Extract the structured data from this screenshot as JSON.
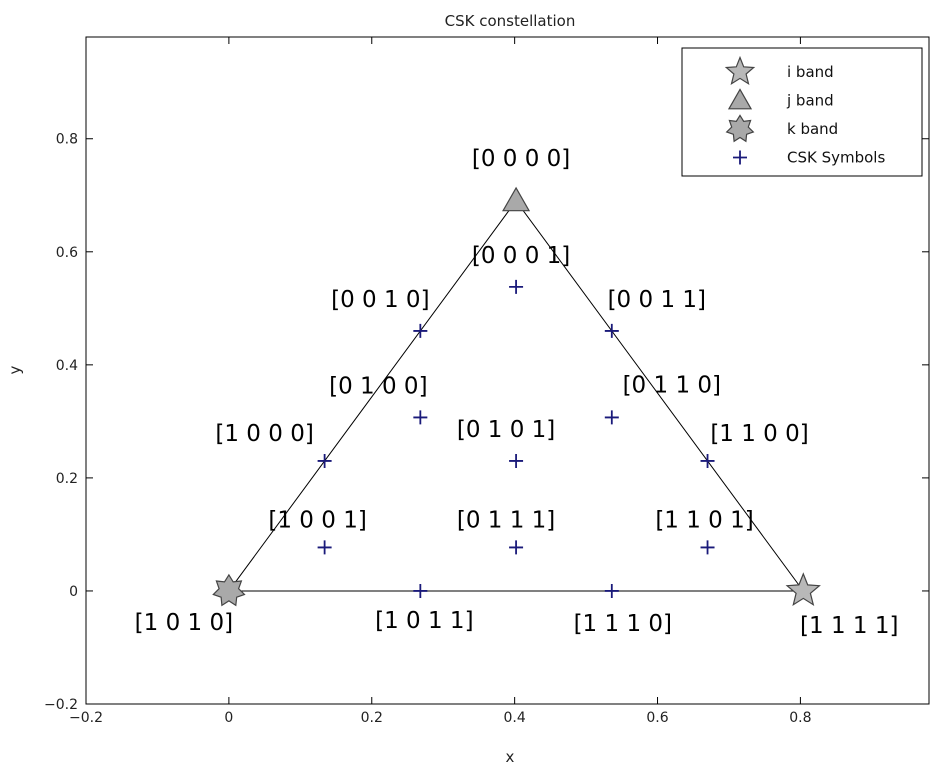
{
  "chart_data": {
    "type": "scatter",
    "title": "CSK constellation",
    "xlabel": "x",
    "ylabel": "y",
    "xlim": [
      -0.2,
      0.98
    ],
    "ylim": [
      -0.2,
      0.98
    ],
    "xticks": [
      -0.2,
      0,
      0.2,
      0.4,
      0.6,
      0.8
    ],
    "yticks": [
      -0.2,
      0,
      0.2,
      0.4,
      0.6,
      0.8
    ],
    "xtick_labels": [
      "−0.2",
      "0",
      "0.2",
      "0.4",
      "0.6",
      "0.8"
    ],
    "ytick_labels": [
      "−0.2",
      "0",
      "0.2",
      "0.4",
      "0.6",
      "0.8"
    ],
    "grid": false,
    "legend_position": "top-right",
    "triangle": [
      [
        0.0,
        0.0
      ],
      [
        0.402,
        0.69
      ],
      [
        0.804,
        0.0
      ]
    ],
    "series": [
      {
        "name": "i band",
        "marker": "star5",
        "color": "#b8b8b8",
        "points": [
          [
            0.804,
            0.0
          ]
        ]
      },
      {
        "name": "j band",
        "marker": "triangle",
        "color": "#a9a9a9",
        "points": [
          [
            0.402,
            0.69
          ]
        ]
      },
      {
        "name": "k band",
        "marker": "star7",
        "color": "#a9a9a9",
        "points": [
          [
            0.0,
            0.0
          ]
        ]
      },
      {
        "name": "CSK Symbols",
        "marker": "plus",
        "color": "#1a1a7a",
        "points": [
          [
            0.402,
            0.538
          ],
          [
            0.268,
            0.46
          ],
          [
            0.536,
            0.46
          ],
          [
            0.268,
            0.307
          ],
          [
            0.536,
            0.307
          ],
          [
            0.134,
            0.23
          ],
          [
            0.402,
            0.23
          ],
          [
            0.67,
            0.23
          ],
          [
            0.134,
            0.077
          ],
          [
            0.402,
            0.077
          ],
          [
            0.67,
            0.077
          ],
          [
            0.268,
            0.0
          ],
          [
            0.536,
            0.0
          ]
        ]
      }
    ],
    "annotations": [
      {
        "text": "[0 0 0 0]",
        "x": 0.402,
        "y": 0.69
      },
      {
        "text": "[0 0 0 1]",
        "x": 0.402,
        "y": 0.538
      },
      {
        "text": "[0 0 1 0]",
        "x": 0.268,
        "y": 0.46
      },
      {
        "text": "[0 0 1 1]",
        "x": 0.536,
        "y": 0.46
      },
      {
        "text": "[0 1 0 0]",
        "x": 0.268,
        "y": 0.307
      },
      {
        "text": "[0 1 1 0]",
        "x": 0.536,
        "y": 0.307
      },
      {
        "text": "[1 0 0 0]",
        "x": 0.134,
        "y": 0.23
      },
      {
        "text": "[0 1 0 1]",
        "x": 0.402,
        "y": 0.23
      },
      {
        "text": "[1 1 0 0]",
        "x": 0.67,
        "y": 0.23
      },
      {
        "text": "[1 0 0 1]",
        "x": 0.134,
        "y": 0.077
      },
      {
        "text": "[0 1 1 1]",
        "x": 0.402,
        "y": 0.077
      },
      {
        "text": "[1 1 0 1]",
        "x": 0.67,
        "y": 0.077
      },
      {
        "text": "[1 0 1 0]",
        "x": 0.0,
        "y": 0.0
      },
      {
        "text": "[1 0 1 1]",
        "x": 0.268,
        "y": 0.0
      },
      {
        "text": "[1 1 1 0]",
        "x": 0.536,
        "y": 0.0
      },
      {
        "text": "[1 1 1 1]",
        "x": 0.804,
        "y": 0.0
      }
    ]
  }
}
